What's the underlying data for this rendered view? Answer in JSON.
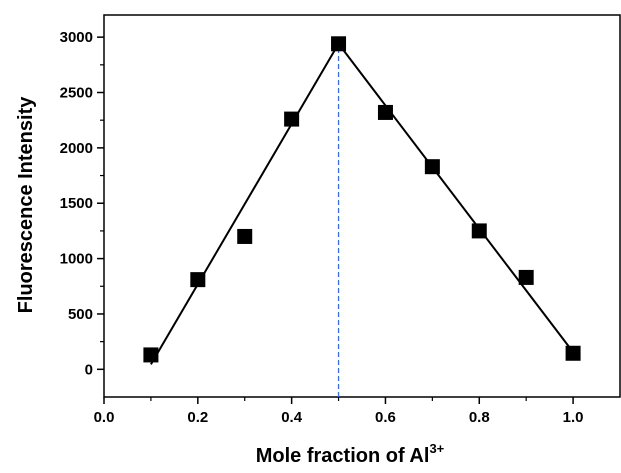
{
  "chart_data": {
    "type": "scatter",
    "xlabel": "Mole fraction of Al",
    "xlabel_sup": "3+",
    "ylabel": "Fluorescence Intensity",
    "x": [
      0.1,
      0.2,
      0.3,
      0.4,
      0.5,
      0.6,
      0.7,
      0.8,
      0.9,
      1.0
    ],
    "values": [
      130,
      810,
      1200,
      2260,
      2940,
      2320,
      1830,
      1250,
      830,
      145
    ],
    "color": "#000000",
    "fit_lines": [
      {
        "x": [
          0.1,
          0.5
        ],
        "values": [
          45,
          2940
        ],
        "color": "#000000"
      },
      {
        "x": [
          0.5,
          1.0
        ],
        "values": [
          2940,
          155
        ],
        "color": "#000000"
      }
    ],
    "reference_line": {
      "x": 0.5,
      "color": "#3a6fd8",
      "dashed": true
    },
    "xlim": [
      0,
      1.1
    ],
    "ylim": [
      -250,
      3200
    ],
    "xticks": [
      {
        "value": 0,
        "label": "0.0"
      },
      {
        "value": 0.2,
        "label": "0.2"
      },
      {
        "value": 0.4,
        "label": "0.4"
      },
      {
        "value": 0.6,
        "label": "0.6"
      },
      {
        "value": 0.8,
        "label": "0.8"
      },
      {
        "value": 1,
        "label": "1.0"
      }
    ],
    "yticks": [
      0,
      500,
      1000,
      1500,
      2000,
      2500,
      3000
    ],
    "grid": false
  }
}
